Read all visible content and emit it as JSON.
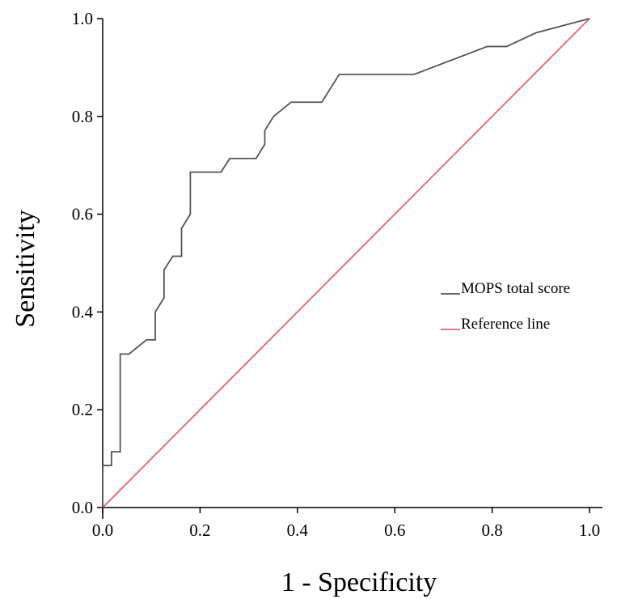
{
  "chart_data": {
    "type": "line",
    "title": "",
    "xlabel": "1 - Specificity",
    "ylabel": "Sensitivity",
    "xlim": [
      0,
      1
    ],
    "ylim": [
      0,
      1
    ],
    "x_ticks": [
      "0.0",
      "0.2",
      "0.4",
      "0.6",
      "0.8",
      "1.0"
    ],
    "y_ticks": [
      "0.0",
      "0.2",
      "0.4",
      "0.6",
      "0.8",
      "1.0"
    ],
    "grid": false,
    "legend_position": "right-middle",
    "series": [
      {
        "name": "MOPS total score",
        "color": "#555555",
        "points": [
          [
            0.0,
            0.0
          ],
          [
            0.0,
            0.086
          ],
          [
            0.018,
            0.086
          ],
          [
            0.018,
            0.114
          ],
          [
            0.036,
            0.114
          ],
          [
            0.036,
            0.314
          ],
          [
            0.054,
            0.314
          ],
          [
            0.09,
            0.343
          ],
          [
            0.108,
            0.343
          ],
          [
            0.108,
            0.4
          ],
          [
            0.126,
            0.429
          ],
          [
            0.126,
            0.486
          ],
          [
            0.144,
            0.514
          ],
          [
            0.162,
            0.514
          ],
          [
            0.162,
            0.571
          ],
          [
            0.18,
            0.6
          ],
          [
            0.18,
            0.686
          ],
          [
            0.243,
            0.686
          ],
          [
            0.261,
            0.714
          ],
          [
            0.315,
            0.714
          ],
          [
            0.333,
            0.743
          ],
          [
            0.333,
            0.771
          ],
          [
            0.351,
            0.8
          ],
          [
            0.387,
            0.829
          ],
          [
            0.45,
            0.829
          ],
          [
            0.486,
            0.886
          ],
          [
            0.64,
            0.886
          ],
          [
            0.79,
            0.943
          ],
          [
            0.83,
            0.943
          ],
          [
            0.89,
            0.971
          ],
          [
            1.0,
            1.0
          ]
        ]
      },
      {
        "name": "Reference line",
        "color": "#e8636b",
        "points": [
          [
            0.0,
            0.0
          ],
          [
            1.0,
            1.0
          ]
        ]
      }
    ]
  }
}
